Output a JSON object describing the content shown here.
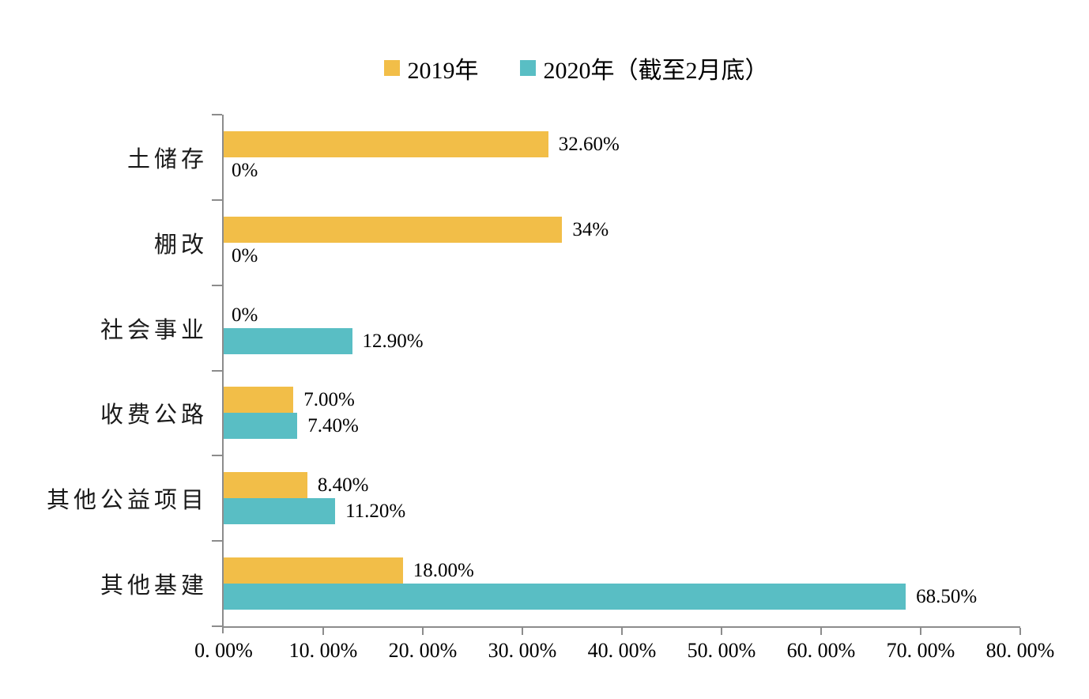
{
  "chart_data": {
    "type": "bar",
    "orientation": "horizontal",
    "categories": [
      "土储存",
      "棚改",
      "社会事业",
      "收费公路",
      "其他公益项目",
      "其他基建"
    ],
    "series": [
      {
        "name": "2019年",
        "color": "#F2BE48",
        "values": [
          32.6,
          34,
          0,
          7.0,
          8.4,
          18.0
        ],
        "labels": [
          "32.60%",
          "34%",
          "0%",
          "7.00%",
          "8.40%",
          "18.00%"
        ]
      },
      {
        "name": "2020年（截至2月底）",
        "color": "#59BEC4",
        "values": [
          0,
          0,
          12.9,
          7.4,
          11.2,
          68.5
        ],
        "labels": [
          "0%",
          "0%",
          "12.90%",
          "7.40%",
          "11.20%",
          "68.50%"
        ]
      }
    ],
    "xlim": [
      0,
      80
    ],
    "x_tick_step": 10,
    "x_tick_labels": [
      "0. 00%",
      "10. 00%",
      "20. 00%",
      "30. 00%",
      "40. 00%",
      "50. 00%",
      "60. 00%",
      "70. 00%",
      "80. 00%"
    ],
    "legend_position": "top",
    "grid": false,
    "axis_color": "#8C8C8C",
    "text_color": "#000000"
  }
}
